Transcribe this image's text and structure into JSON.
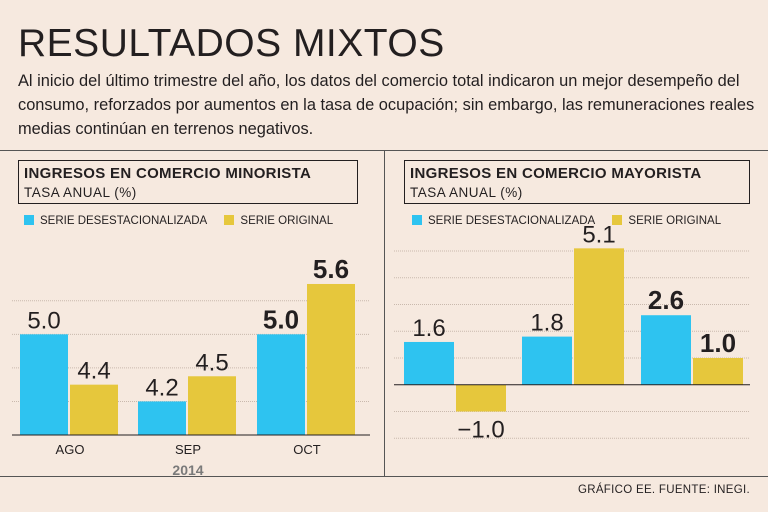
{
  "headline": "RESULTADOS MIXTOS",
  "intro": "Al inicio del último trimestre del año, los datos del comercio total indicaron un mejor desempeño del consumo, reforzados por aumentos en la tasa de ocupación; sin embargo, las remuneraciones reales medias continúan en terrenos negativos.",
  "footer": "GRÁFICO EE. FUENTE: INEGI.",
  "colors": {
    "desestacionalizada": "#2ec3f0",
    "original": "#e6c73c",
    "background": "#f6e9df"
  },
  "chart_data": [
    {
      "type": "bar",
      "title": "INGRESOS EN COMERCIO MINORISTA",
      "subtitle": "TASA ANUAL (%)",
      "categories": [
        "AGO",
        "SEP",
        "OCT"
      ],
      "x_group_label": "2014",
      "series": [
        {
          "name": "SERIE DESESTACIONALIZADA",
          "values": [
            5.0,
            4.2,
            5.0
          ]
        },
        {
          "name": "SERIE ORIGINAL",
          "values": [
            4.4,
            4.5,
            5.6
          ]
        }
      ],
      "data_labels": [
        [
          "5.0",
          "4.2",
          "5.0"
        ],
        [
          "4.4",
          "4.5",
          "5.6"
        ]
      ],
      "highlight_category": "OCT",
      "ylim": [
        3.8,
        5.85
      ],
      "legend": "top-left",
      "grid": true
    },
    {
      "type": "bar",
      "title": "INGRESOS EN COMERCIO MAYORISTA",
      "subtitle": "TASA ANUAL (%)",
      "categories": [
        "",
        "",
        ""
      ],
      "series": [
        {
          "name": "SERIE DESESTACIONALIZADA",
          "values": [
            1.6,
            1.8,
            2.6
          ]
        },
        {
          "name": "SERIE ORIGINAL",
          "values": [
            -1.0,
            5.1,
            1.0
          ]
        }
      ],
      "data_labels": [
        [
          "1.6",
          "1.8",
          "2.6"
        ],
        [
          "−1.0",
          "5.1",
          "1.0"
        ]
      ],
      "highlight_category_index": 2,
      "ylim": [
        -3.0,
        5.3
      ],
      "legend": "top-left",
      "grid": true
    }
  ]
}
